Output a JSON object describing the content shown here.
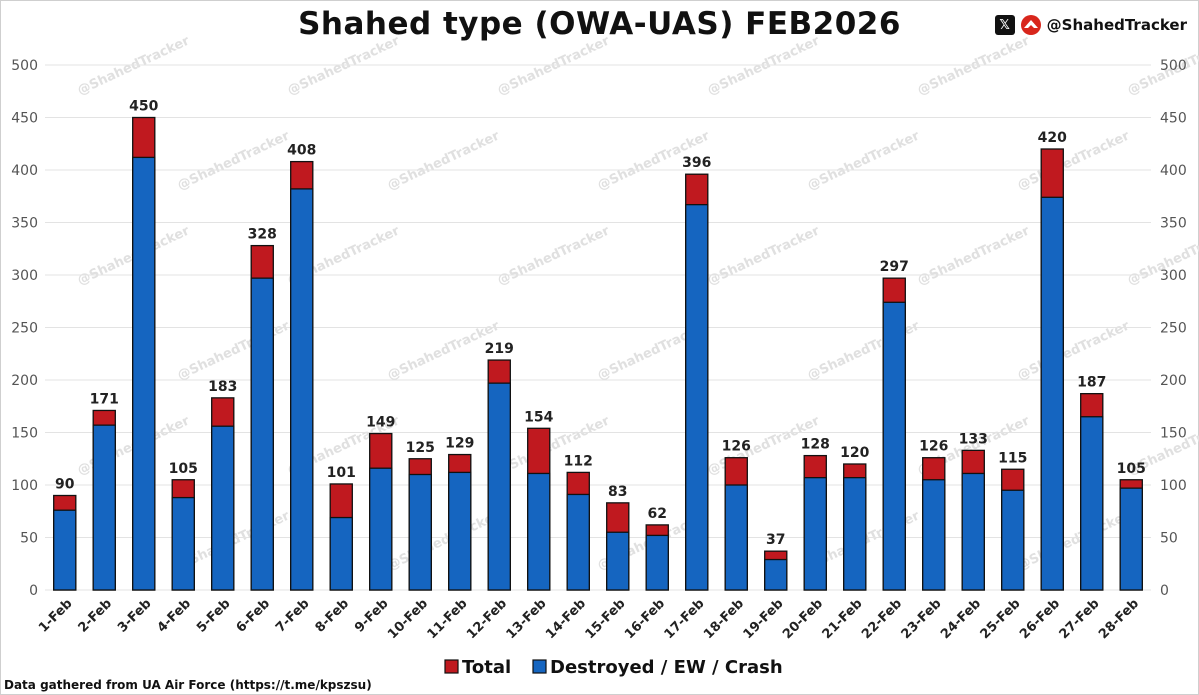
{
  "title": "Shahed type (OWA-UAS) FEB2026",
  "brand": {
    "handle": "@ShahedTracker",
    "x_icon": "x-logo-icon",
    "logo_icon": "shahed-tracker-logo-icon"
  },
  "footer": "Data gathered from UA Air Force (https://t.me/kpszsu)",
  "watermark": "@ShahedTracker",
  "colors": {
    "total": "#c0191f",
    "destroyed": "#1565c0",
    "grid": "#e3e3e3"
  },
  "chart_data": {
    "type": "bar",
    "stacked": true,
    "categories": [
      "1-Feb",
      "2-Feb",
      "3-Feb",
      "4-Feb",
      "5-Feb",
      "6-Feb",
      "7-Feb",
      "8-Feb",
      "9-Feb",
      "10-Feb",
      "11-Feb",
      "12-Feb",
      "13-Feb",
      "14-Feb",
      "15-Feb",
      "16-Feb",
      "17-Feb",
      "18-Feb",
      "19-Feb",
      "20-Feb",
      "21-Feb",
      "22-Feb",
      "23-Feb",
      "24-Feb",
      "25-Feb",
      "26-Feb",
      "27-Feb",
      "28-Feb"
    ],
    "series": [
      {
        "name": "Total",
        "values": [
          90,
          171,
          450,
          105,
          183,
          328,
          408,
          101,
          149,
          125,
          129,
          219,
          154,
          112,
          83,
          62,
          396,
          126,
          37,
          128,
          120,
          297,
          126,
          133,
          115,
          420,
          187,
          105
        ]
      },
      {
        "name": "Destroyed / EW / Crash",
        "values": [
          76,
          157,
          412,
          88,
          156,
          297,
          382,
          69,
          116,
          110,
          112,
          197,
          111,
          91,
          55,
          52,
          367,
          100,
          29,
          107,
          107,
          274,
          105,
          111,
          95,
          374,
          165,
          97
        ]
      }
    ],
    "ylim": [
      0,
      500
    ],
    "yticks": [
      0,
      50,
      100,
      150,
      200,
      250,
      300,
      350,
      400,
      450,
      500
    ],
    "grid": true,
    "legend_position": "bottom"
  }
}
